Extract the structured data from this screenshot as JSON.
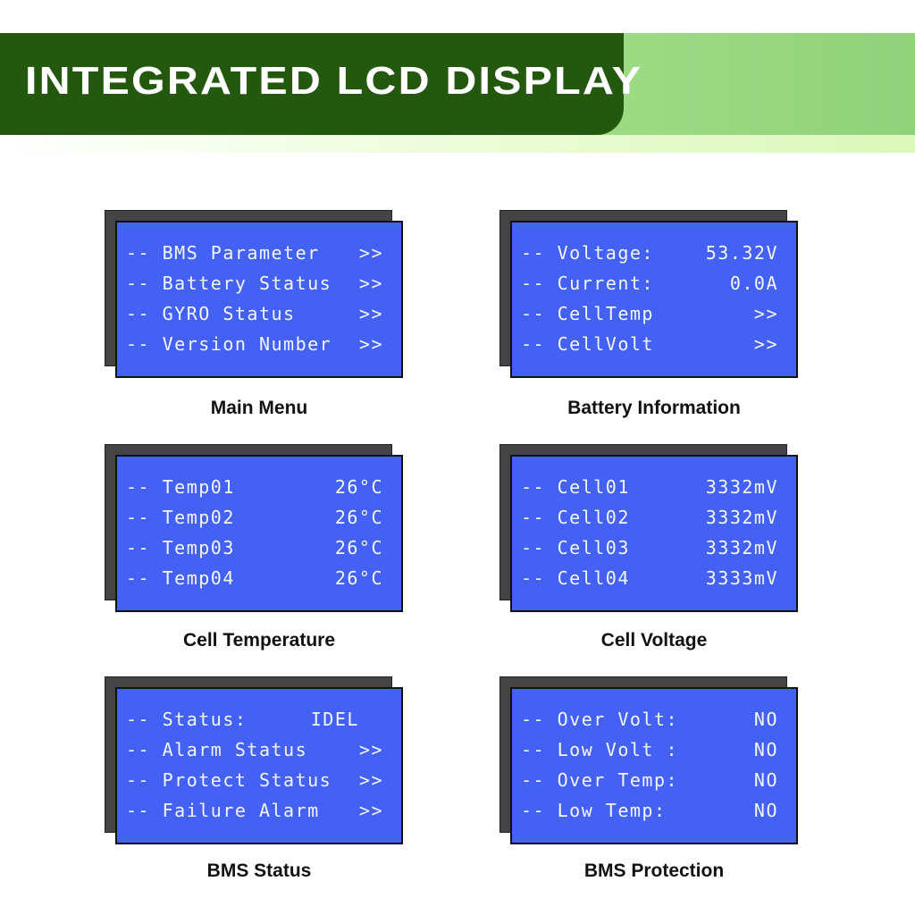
{
  "header": {
    "title": "INTEGRATED LCD DISPLAY"
  },
  "panels": [
    {
      "caption": "Main Menu",
      "rows": [
        {
          "label": "-- BMS Parameter",
          "value": ">>"
        },
        {
          "label": "-- Battery Status",
          "value": ">>"
        },
        {
          "label": "-- GYRO Status",
          "value": ">>"
        },
        {
          "label": "-- Version Number",
          "value": ">>"
        }
      ]
    },
    {
      "caption": "Battery Information",
      "rows": [
        {
          "label": "-- Voltage:",
          "value": "53.32V"
        },
        {
          "label": "-- Current:",
          "value": "0.0A"
        },
        {
          "label": "-- CellTemp",
          "value": ">>"
        },
        {
          "label": "-- CellVolt",
          "value": ">>"
        }
      ]
    },
    {
      "caption": "Cell Temperature",
      "rows": [
        {
          "label": "-- Temp01",
          "value": "26°C"
        },
        {
          "label": "-- Temp02",
          "value": "26°C"
        },
        {
          "label": "-- Temp03",
          "value": "26°C"
        },
        {
          "label": "-- Temp04",
          "value": "26°C"
        }
      ]
    },
    {
      "caption": "Cell Voltage",
      "rows": [
        {
          "label": "-- Cell01",
          "value": "3332mV"
        },
        {
          "label": "-- Cell02",
          "value": "3332mV"
        },
        {
          "label": "-- Cell03",
          "value": "3332mV"
        },
        {
          "label": "-- Cell04",
          "value": "3333mV"
        }
      ]
    },
    {
      "caption": "BMS Status",
      "rows": [
        {
          "label": "-- Status:",
          "value": "IDEL  "
        },
        {
          "label": "-- Alarm Status",
          "value": ">>"
        },
        {
          "label": "-- Protect Status",
          "value": ">>"
        },
        {
          "label": "-- Failure Alarm",
          "value": ">>"
        }
      ]
    },
    {
      "caption": "BMS Protection",
      "rows": [
        {
          "label": "-- Over Volt:",
          "value": "NO"
        },
        {
          "label": "-- Low Volt :",
          "value": "NO"
        },
        {
          "label": "-- Over Temp:",
          "value": "NO"
        },
        {
          "label": "-- Low Temp:",
          "value": "NO"
        }
      ]
    }
  ]
}
